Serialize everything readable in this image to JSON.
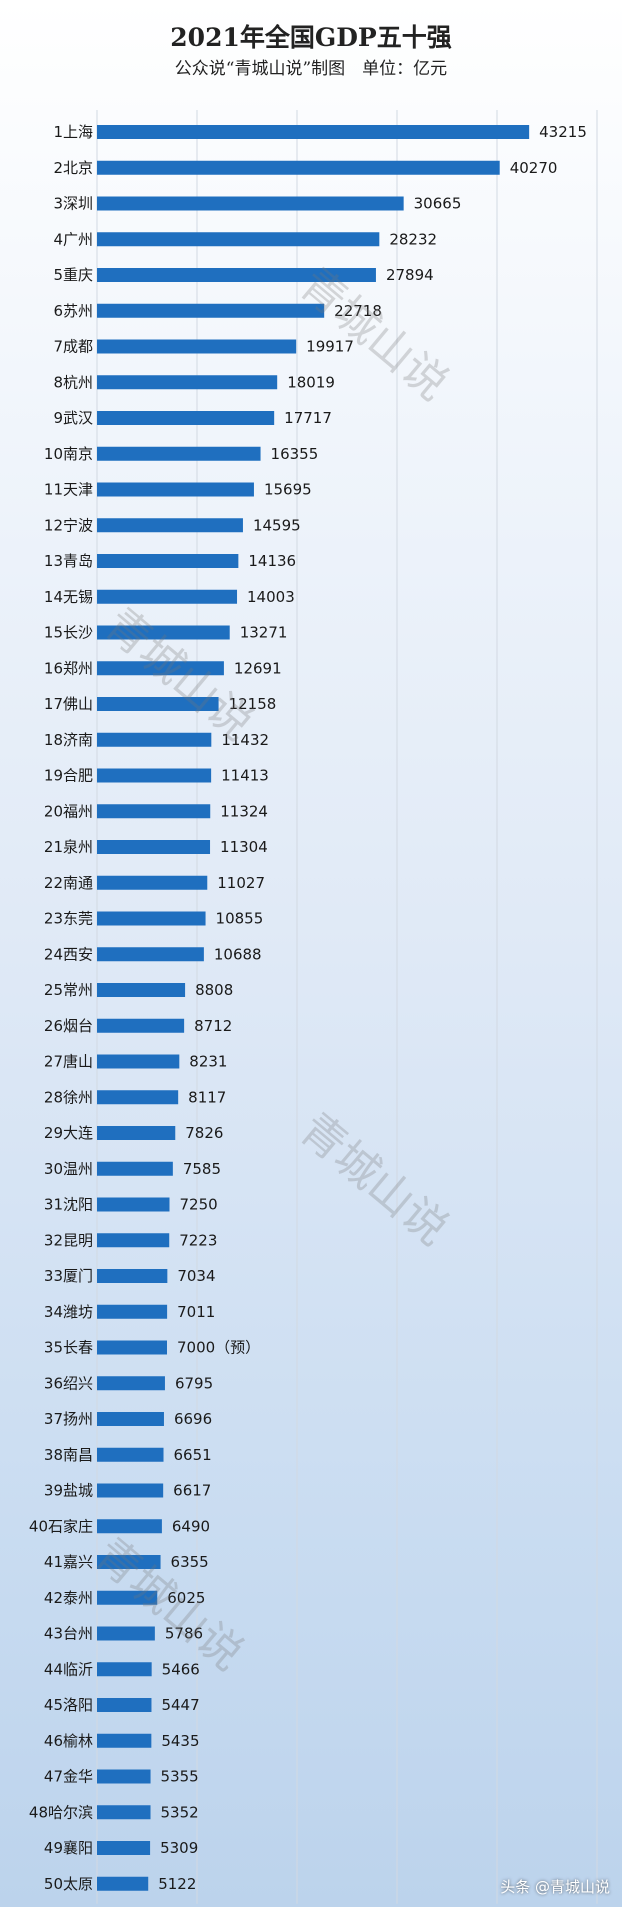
{
  "chart_data": {
    "type": "bar",
    "orientation": "horizontal",
    "title": "2021年全国GDP五十强",
    "subtitle": "公众说“青城山说”制图　单位：亿元",
    "xlabel": "",
    "ylabel": "",
    "xlim": [
      0,
      50000
    ],
    "grid": true,
    "categories": [
      "1上海",
      "2北京",
      "3深圳",
      "4广州",
      "5重庆",
      "6苏州",
      "7成都",
      "8杭州",
      "9武汉",
      "10南京",
      "11天津",
      "12宁波",
      "13青岛",
      "14无锡",
      "15长沙",
      "16郑州",
      "17佛山",
      "18济南",
      "19合肥",
      "20福州",
      "21泉州",
      "22南通",
      "23东莞",
      "24西安",
      "25常州",
      "26烟台",
      "27唐山",
      "28徐州",
      "29大连",
      "30温州",
      "31沈阳",
      "32昆明",
      "33厦门",
      "34潍坊",
      "35长春",
      "36绍兴",
      "37扬州",
      "38南昌",
      "39盐城",
      "40石家庄",
      "41嘉兴",
      "42泰州",
      "43台州",
      "44临沂",
      "45洛阳",
      "46榆林",
      "47金华",
      "48哈尔滨",
      "49襄阳",
      "50太原"
    ],
    "values": [
      43215,
      40270,
      30665,
      28232,
      27894,
      22718,
      19917,
      18019,
      17717,
      16355,
      15695,
      14595,
      14136,
      14003,
      13271,
      12691,
      12158,
      11432,
      11413,
      11324,
      11304,
      11027,
      10855,
      10688,
      8808,
      8712,
      8231,
      8117,
      7826,
      7585,
      7250,
      7223,
      7034,
      7011,
      7000,
      6795,
      6696,
      6651,
      6617,
      6490,
      6355,
      6025,
      5786,
      5466,
      5447,
      5435,
      5355,
      5352,
      5309,
      5122
    ],
    "data_labels": [
      "43215",
      "40270",
      "30665",
      "28232",
      "27894",
      "22718",
      "19917",
      "18019",
      "17717",
      "16355",
      "15695",
      "14595",
      "14136",
      "14003",
      "13271",
      "12691",
      "12158",
      "11432",
      "11413",
      "11324",
      "11304",
      "11027",
      "10855",
      "10688",
      "8808",
      "8712",
      "8231",
      "8117",
      "7826",
      "7585",
      "7250",
      "7223",
      "7034",
      "7011",
      "7000（预）",
      "6795",
      "6696",
      "6651",
      "6617",
      "6490",
      "6355",
      "6025",
      "5786",
      "5466",
      "5447",
      "5435",
      "5355",
      "5352",
      "5309",
      "5122"
    ],
    "bar_color": "#1f6fbf"
  },
  "watermarks": [
    "青城山说",
    "青城山说",
    "青城山说",
    "青城山说"
  ],
  "footer": "头条 @青城山说"
}
